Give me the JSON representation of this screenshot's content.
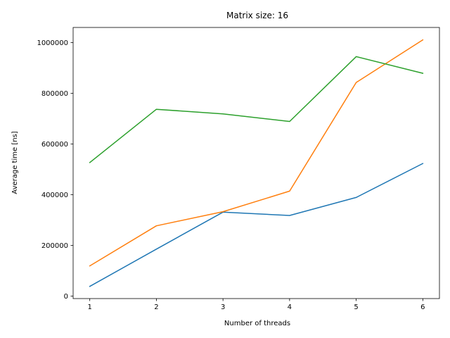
{
  "chart_data": {
    "type": "line",
    "title": "Matrix size: 16",
    "xlabel": "Number of threads",
    "ylabel": "Average time [ns]",
    "x": [
      1,
      2,
      3,
      4,
      5,
      6
    ],
    "xticks": [
      "1",
      "2",
      "3",
      "4",
      "5",
      "6"
    ],
    "yticks": [
      0,
      200000,
      400000,
      600000,
      800000,
      1000000
    ],
    "ytick_labels": [
      "0",
      "200000",
      "400000",
      "600000",
      "800000",
      "1000000"
    ],
    "xlim": [
      0.75,
      6.25
    ],
    "ylim": [
      -10000,
      1060000
    ],
    "grid": false,
    "legend": false,
    "series": [
      {
        "color": "#1f77b4",
        "values": [
          38000,
          185000,
          331000,
          318000,
          389000,
          523000
        ]
      },
      {
        "color": "#ff7f0e",
        "values": [
          119000,
          277000,
          333000,
          414000,
          843000,
          1011000
        ]
      },
      {
        "color": "#2ca02c",
        "values": [
          527000,
          737000,
          719000,
          689000,
          945000,
          879000
        ]
      }
    ]
  }
}
